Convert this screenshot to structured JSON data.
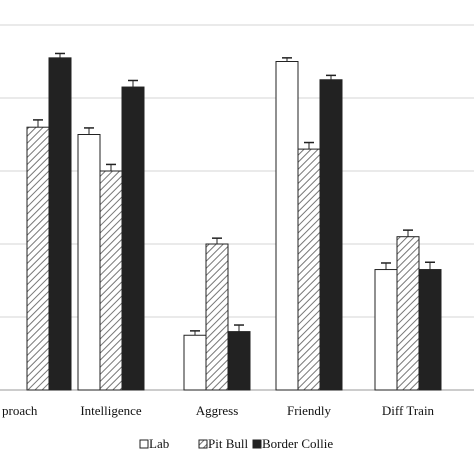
{
  "chart_data": {
    "type": "bar",
    "categories": [
      "proach",
      "Intelligence",
      "Aggress",
      "Friendly",
      "Diff Train"
    ],
    "series": [
      {
        "name": "Lab",
        "values": [
          null,
          3.5,
          0.75,
          4.5,
          1.65
        ],
        "errors": [
          null,
          0.09,
          0.06,
          0.05,
          0.09
        ]
      },
      {
        "name": "Pit Bull",
        "values": [
          3.6,
          3.0,
          2.0,
          3.3,
          2.1
        ],
        "errors": [
          0.1,
          0.09,
          0.08,
          0.09,
          0.09
        ]
      },
      {
        "name": "Border Collie",
        "values": [
          4.55,
          4.15,
          0.8,
          4.25,
          1.65
        ],
        "errors": [
          0.06,
          0.09,
          0.09,
          0.06,
          0.1
        ]
      }
    ],
    "ylim": [
      0,
      5
    ],
    "grid": true,
    "legend": "bottom-center",
    "colors": {
      "Lab": "#ffffff",
      "Pit Bull": "hatched",
      "Border Collie": "#222222"
    }
  }
}
